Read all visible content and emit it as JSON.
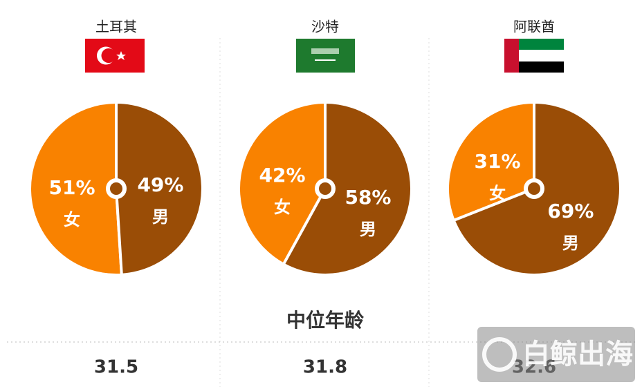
{
  "chart_data": [
    {
      "type": "pie",
      "title": "土耳其",
      "categories": [
        "女",
        "男"
      ],
      "values": [
        51,
        49
      ],
      "value_labels": [
        "51%",
        "49%"
      ],
      "colors": [
        "#f98200",
        "#9a4d06"
      ]
    },
    {
      "type": "pie",
      "title": "沙特",
      "categories": [
        "女",
        "男"
      ],
      "values": [
        42,
        58
      ],
      "value_labels": [
        "42%",
        "58%"
      ],
      "colors": [
        "#f98200",
        "#9a4d06"
      ]
    },
    {
      "type": "pie",
      "title": "阿联酋",
      "categories": [
        "女",
        "男"
      ],
      "values": [
        31,
        69
      ],
      "value_labels": [
        "31%",
        "69%"
      ],
      "colors": [
        "#f98200",
        "#9a4d06"
      ]
    }
  ],
  "median_age": {
    "label": "中位年龄",
    "values": [
      "31.5",
      "31.8",
      "32.6"
    ]
  },
  "watermark": "白鲸出海"
}
